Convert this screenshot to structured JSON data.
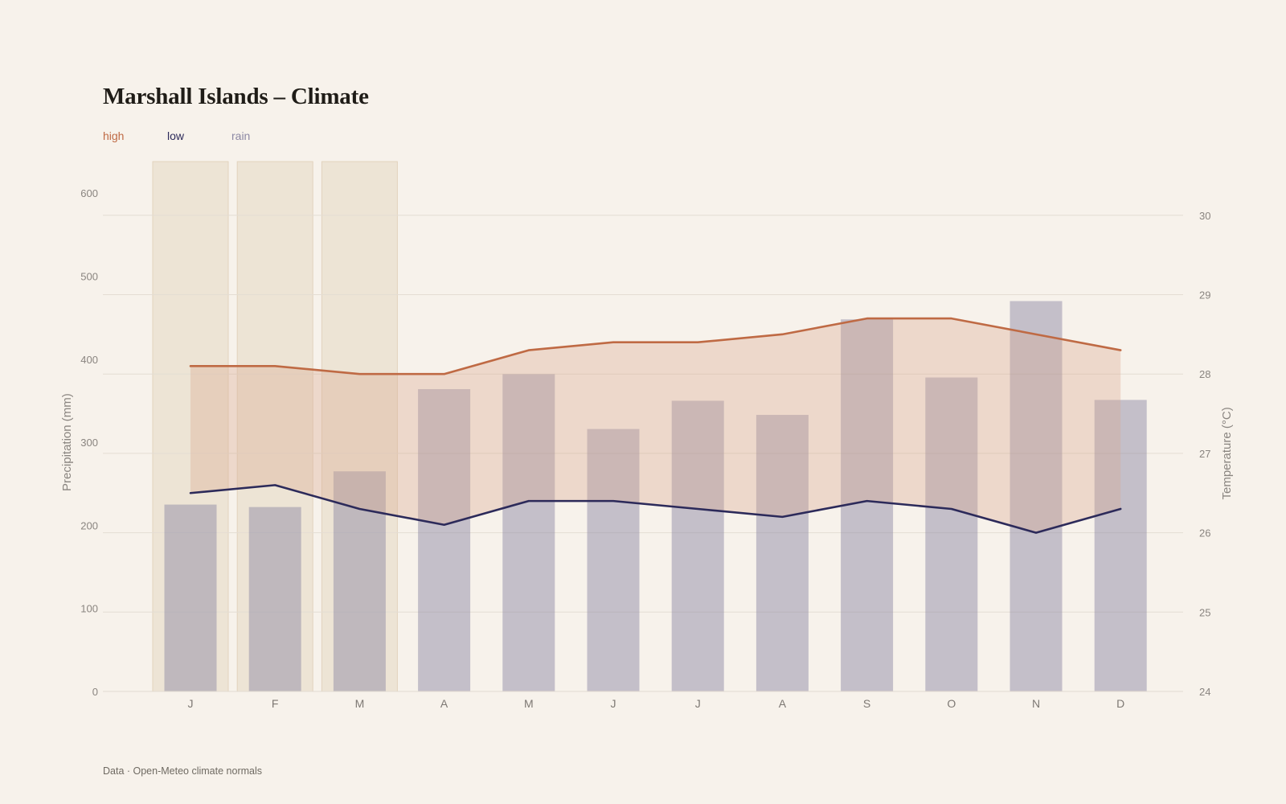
{
  "title": "Marshall Islands – Climate",
  "legend": {
    "high": "high",
    "low": "low",
    "rain": "rain"
  },
  "source": "Data · Open-Meteo climate normals",
  "colors": {
    "background": "#f7f2eb",
    "high": "#bf6a44",
    "low": "#2c2a5a",
    "rain": "#8c88a4",
    "band_fill": "#d9a88e",
    "highlight_months": "#e6d8c3"
  },
  "chart_data": {
    "type": "bar",
    "categories": [
      "J",
      "F",
      "M",
      "A",
      "M",
      "J",
      "J",
      "A",
      "S",
      "O",
      "N",
      "D"
    ],
    "highlighted_months": [
      0,
      1,
      2
    ],
    "series": [
      {
        "name": "rain",
        "type": "bar",
        "axis": "left",
        "values": [
          225,
          222,
          265,
          364,
          382,
          316,
          350,
          333,
          448,
          378,
          470,
          351
        ]
      },
      {
        "name": "high",
        "type": "line",
        "axis": "right",
        "values": [
          28.1,
          28.1,
          28.0,
          28.0,
          28.3,
          28.4,
          28.4,
          28.5,
          28.7,
          28.7,
          28.5,
          28.3
        ]
      },
      {
        "name": "low",
        "type": "line",
        "axis": "right",
        "values": [
          26.5,
          26.6,
          26.3,
          26.1,
          26.4,
          26.4,
          26.3,
          26.2,
          26.4,
          26.3,
          26.0,
          26.3
        ]
      }
    ],
    "y_left": {
      "label": "Precipitation (mm)",
      "range": [
        0,
        635
      ],
      "ticks": [
        0,
        100,
        200,
        300,
        400,
        500,
        600
      ]
    },
    "y_right": {
      "label": "Temperature (°C)",
      "range": [
        24,
        30
      ],
      "ticks": [
        24,
        25,
        26,
        27,
        28,
        29,
        30
      ]
    },
    "grid": true,
    "legend_position": "top-left"
  }
}
